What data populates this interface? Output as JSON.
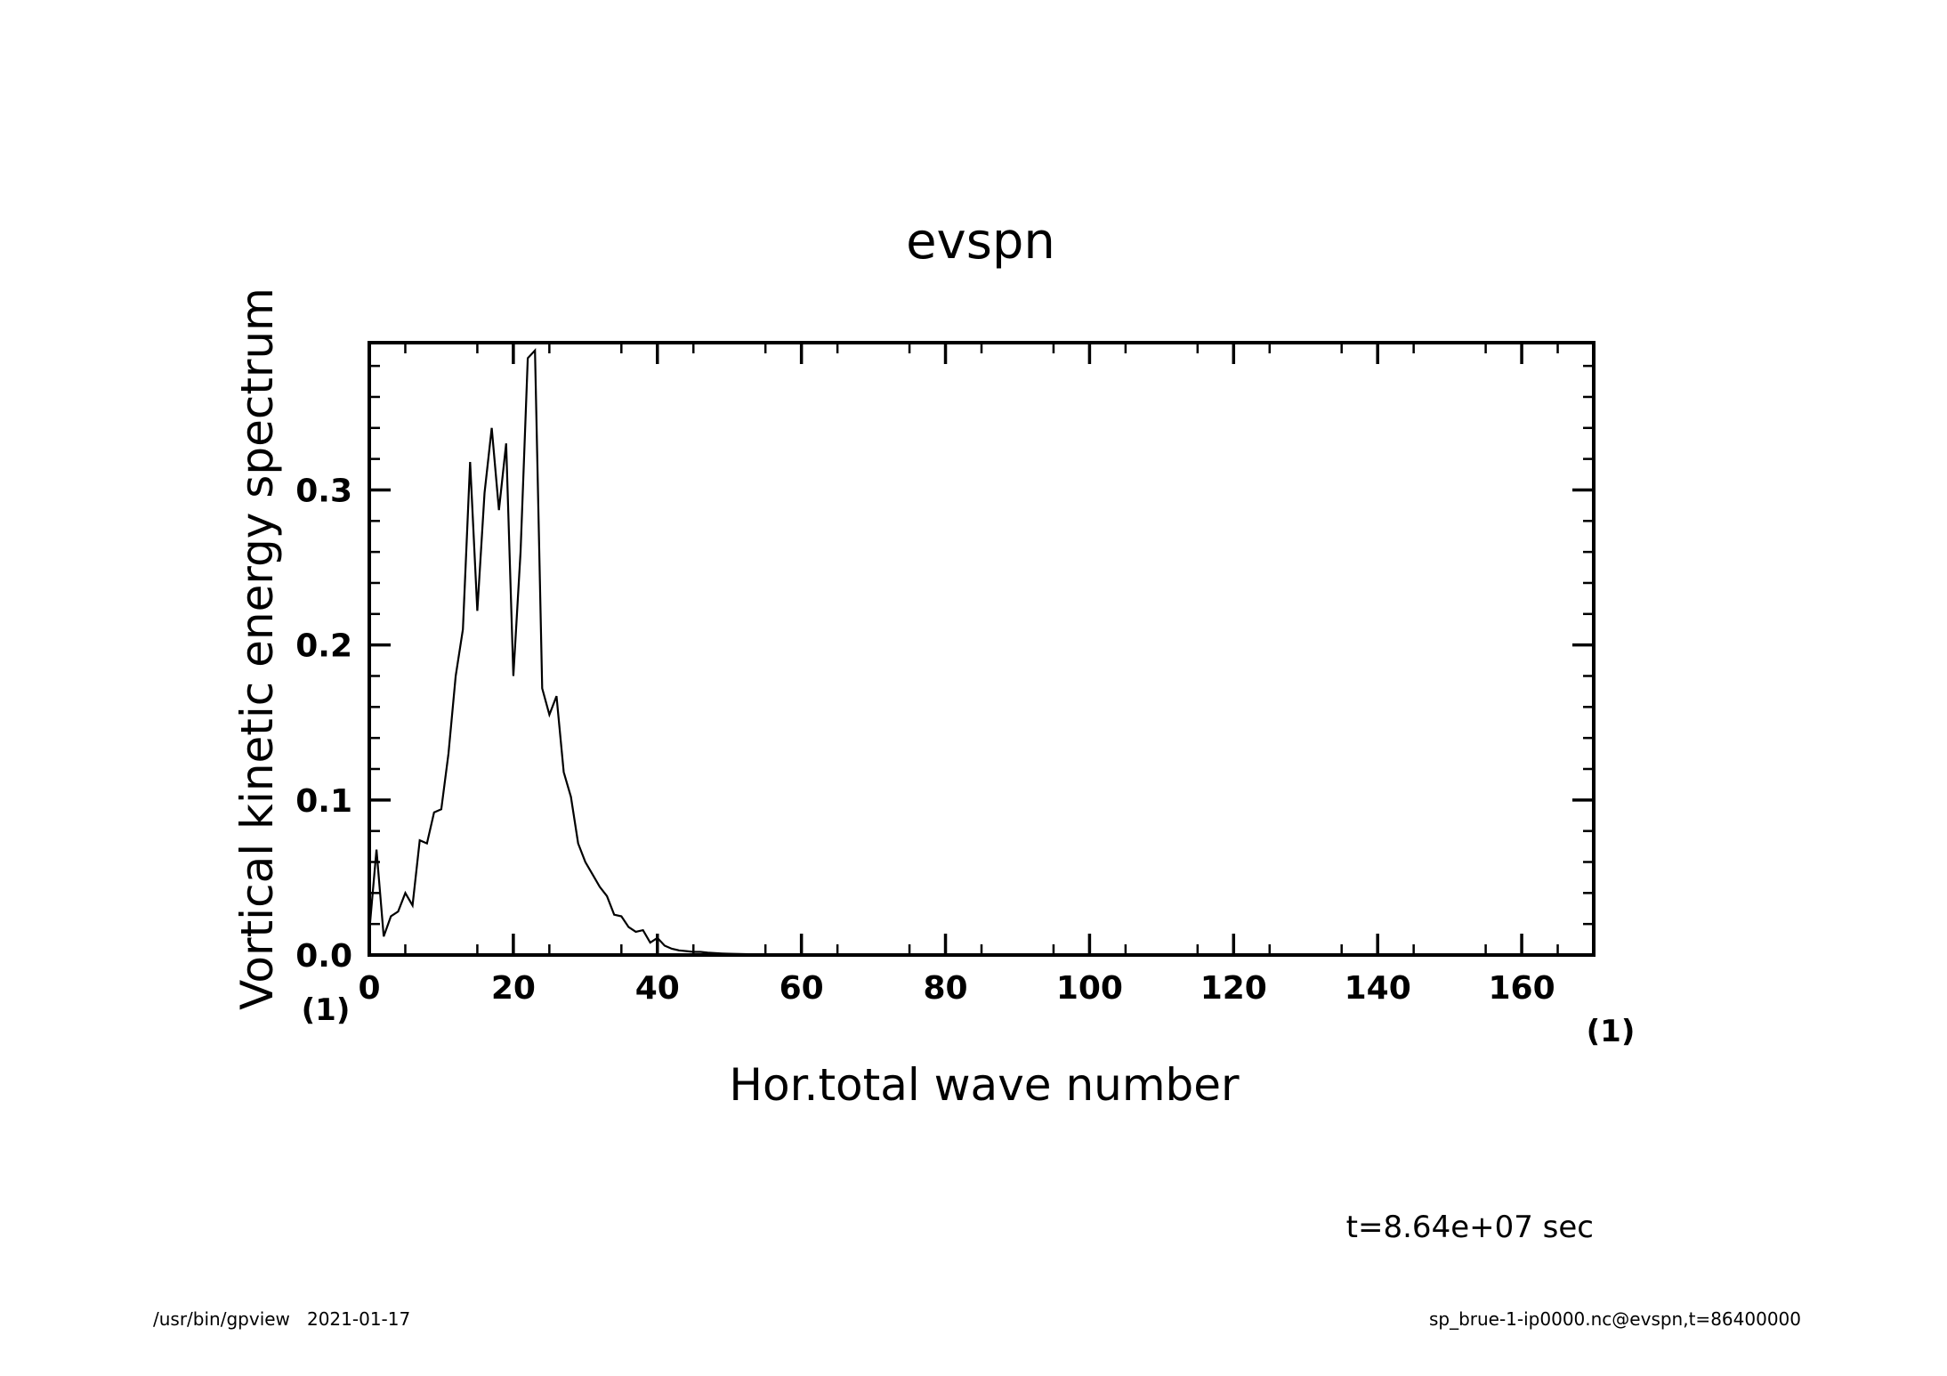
{
  "chart_data": {
    "type": "line",
    "title": "evspn",
    "xlabel": "Hor.total wave number",
    "ylabel": "Vortical kinetic energy spectrum",
    "x_unit": "(1)",
    "y_unit": "(1)",
    "xlim": [
      0,
      170
    ],
    "ylim": [
      0,
      0.395
    ],
    "x_ticks": [
      "0",
      "20",
      "40",
      "60",
      "80",
      "100",
      "120",
      "140",
      "160"
    ],
    "y_ticks": [
      "0.0",
      "0.1",
      "0.2",
      "0.3"
    ],
    "grid": false,
    "series": [
      {
        "x": [
          0,
          1,
          2,
          3,
          4,
          5,
          6,
          7,
          8,
          9,
          10,
          11,
          12,
          13,
          14,
          15,
          16,
          17,
          18,
          19,
          20,
          21,
          22,
          23,
          24,
          25,
          26,
          27,
          28,
          29,
          30,
          31,
          32,
          33,
          34,
          35,
          36,
          37,
          38,
          39,
          40,
          41,
          42,
          43,
          44,
          45,
          46,
          47,
          48,
          49,
          50,
          52,
          54,
          56,
          58,
          60,
          65,
          70,
          80,
          100,
          120,
          140,
          160,
          170
        ],
        "y": [
          0.015,
          0.068,
          0.012,
          0.025,
          0.028,
          0.04,
          0.032,
          0.074,
          0.072,
          0.092,
          0.094,
          0.13,
          0.18,
          0.21,
          0.318,
          0.222,
          0.298,
          0.34,
          0.287,
          0.33,
          0.18,
          0.26,
          0.385,
          0.39,
          0.172,
          0.155,
          0.167,
          0.118,
          0.102,
          0.072,
          0.06,
          0.052,
          0.044,
          0.038,
          0.026,
          0.025,
          0.018,
          0.015,
          0.016,
          0.008,
          0.011,
          0.006,
          0.004,
          0.003,
          0.0025,
          0.002,
          0.002,
          0.0015,
          0.0012,
          0.001,
          0.0008,
          0.0006,
          0.0004,
          0.0003,
          0.0002,
          0.0001,
          0.0,
          0.0,
          0.0,
          0.0,
          0.0,
          0.0,
          0.0,
          0.0
        ]
      }
    ]
  },
  "annotation": "t=8.64e+07 sec",
  "footer": {
    "left": "/usr/bin/gpview   2021-01-17",
    "right": "sp_brue-1-ip0000.nc@evspn,t=86400000"
  }
}
